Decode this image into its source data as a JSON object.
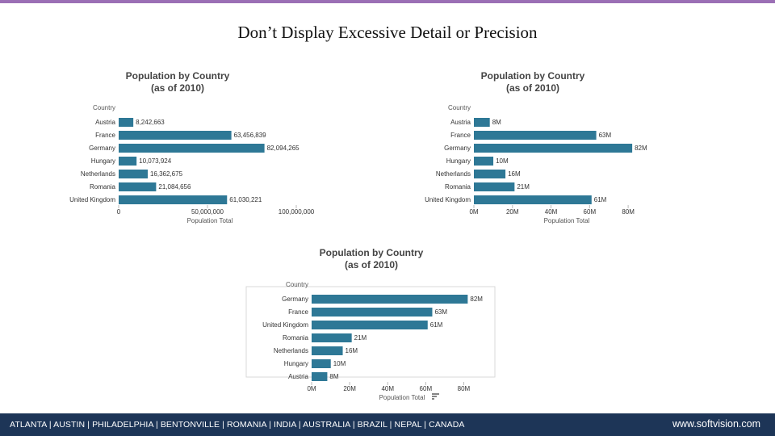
{
  "colors": {
    "accent_bar": "#9b6fb5",
    "bar": "#2e7896",
    "footer_bg": "#1d3557",
    "text": "#333333",
    "axis": "#888888",
    "title": "#444444"
  },
  "slide": {
    "title": "Don’t Display Excessive Detail or Precision"
  },
  "footer": {
    "cities": "ATLANTA | AUSTIN | PHILADELPHIA | BENTONVILLE | ROMANIA | INDIA | AUSTRALIA | BRAZIL | NEPAL | CANADA",
    "url": "www.softvision.com"
  },
  "chart_data": [
    {
      "type": "bar",
      "orientation": "horizontal",
      "title": [
        "Population by Country",
        "(as of 2010)"
      ],
      "ylabel": "Country",
      "xlabel": "Population Total",
      "categories": [
        "Austria",
        "France",
        "Germany",
        "Hungary",
        "Netherlands",
        "Romania",
        "United Kingdom"
      ],
      "values": [
        8242663,
        63456839,
        82094265,
        10073924,
        16362675,
        21084656,
        61030221
      ],
      "data_labels": [
        "8,242,663",
        "63,456,839",
        "82,094,265",
        "10,073,924",
        "16,362,675",
        "21,084,656",
        "61,030,221"
      ],
      "xlim": [
        0,
        100000000
      ],
      "xticks": [
        0,
        50000000,
        100000000
      ],
      "xtick_labels": [
        "0",
        "50,000,000",
        "100,000,000"
      ],
      "sort_icon": false
    },
    {
      "type": "bar",
      "orientation": "horizontal",
      "title": [
        "Population by Country",
        "(as of 2010)"
      ],
      "ylabel": "Country",
      "xlabel": "Population Total",
      "categories": [
        "Austria",
        "France",
        "Germany",
        "Hungary",
        "Netherlands",
        "Romania",
        "United Kingdom"
      ],
      "values": [
        8242663,
        63456839,
        82094265,
        10073924,
        16362675,
        21084656,
        61030221
      ],
      "data_labels": [
        "8M",
        "63M",
        "82M",
        "10M",
        "16M",
        "21M",
        "61M"
      ],
      "xlim": [
        0,
        90000000
      ],
      "xticks": [
        0,
        20000000,
        40000000,
        60000000,
        80000000
      ],
      "xtick_labels": [
        "0M",
        "20M",
        "40M",
        "60M",
        "80M"
      ],
      "sort_icon": false
    },
    {
      "type": "bar",
      "orientation": "horizontal",
      "title": [
        "Population by Country",
        "(as of 2010)"
      ],
      "ylabel": "Country",
      "xlabel": "Population Total",
      "categories": [
        "Germany",
        "France",
        "United Kingdom",
        "Romania",
        "Netherlands",
        "Hungary",
        "Austria"
      ],
      "values": [
        82094265,
        63456839,
        61030221,
        21084656,
        16362675,
        10073924,
        8242663
      ],
      "data_labels": [
        "82M",
        "63M",
        "61M",
        "21M",
        "16M",
        "10M",
        "8M"
      ],
      "xlim": [
        0,
        90000000
      ],
      "xticks": [
        0,
        20000000,
        40000000,
        60000000,
        80000000
      ],
      "xtick_labels": [
        "0M",
        "20M",
        "40M",
        "60M",
        "80M"
      ],
      "sort_icon": true
    }
  ]
}
